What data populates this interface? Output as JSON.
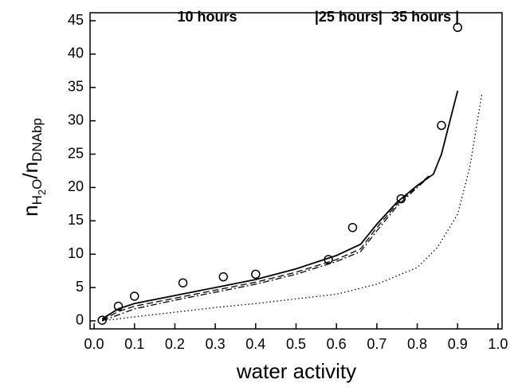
{
  "chart_data": {
    "type": "line",
    "xlabel": "water activity",
    "ylabel": [
      "n",
      "H",
      "2",
      "O",
      "/n",
      "DNAbp"
    ],
    "top_labels": [
      {
        "value": 0.28,
        "label": "10 hours"
      },
      {
        "value": 0.63,
        "label": "|25 hours|"
      },
      {
        "value": 0.82,
        "label": "35 hours |"
      }
    ],
    "xlim": [
      -0.01,
      1.01
    ],
    "ylim": [
      -1.2,
      46.2
    ],
    "xticks": [
      {
        "value": 0,
        "label": "0.0"
      },
      0.1,
      0.2,
      0.3,
      0.4,
      0.5,
      0.6,
      0.7,
      0.8,
      0.9,
      {
        "value": 1,
        "label": "1.0"
      }
    ],
    "yticks": [
      0,
      5,
      10,
      15,
      20,
      25,
      30,
      35,
      40,
      45
    ],
    "series": [
      {
        "style": "circles",
        "color": "#000000",
        "x": [
          0.02,
          0.06,
          0.1,
          0.22,
          0.32,
          0.4,
          0.58,
          0.64,
          0.76,
          0.86,
          0.9
        ],
        "values": [
          0.1,
          2.2,
          3.7,
          5.7,
          6.6,
          7.0,
          9.2,
          14.0,
          18.3,
          29.3,
          44.0
        ]
      },
      {
        "style": "solid",
        "color": "#000000",
        "x": [
          0.02,
          0.06,
          0.1,
          0.2,
          0.3,
          0.4,
          0.5,
          0.6,
          0.66,
          0.7,
          0.75,
          0.8,
          0.84,
          0.86,
          0.9
        ],
        "values": [
          0.3,
          1.8,
          2.6,
          3.8,
          5.0,
          6.2,
          7.8,
          9.8,
          11.5,
          14.5,
          17.8,
          20.3,
          22.0,
          25.0,
          34.5
        ]
      },
      {
        "style": "dashed",
        "color": "#000000",
        "x": [
          0.02,
          0.06,
          0.1,
          0.2,
          0.3,
          0.4,
          0.5,
          0.6,
          0.66,
          0.7,
          0.75,
          0.8,
          0.83
        ],
        "values": [
          0.1,
          1.4,
          2.2,
          3.4,
          4.6,
          5.8,
          7.3,
          9.2,
          10.8,
          14.0,
          17.5,
          20.2,
          21.8
        ]
      },
      {
        "style": "dashdot",
        "color": "#000000",
        "x": [
          0.02,
          0.06,
          0.1,
          0.2,
          0.3,
          0.4,
          0.5,
          0.6,
          0.66,
          0.7,
          0.75,
          0.8,
          0.83
        ],
        "values": [
          0.0,
          0.9,
          1.8,
          3.1,
          4.3,
          5.5,
          7.0,
          8.9,
          10.4,
          13.5,
          17.2,
          20.0,
          21.6
        ]
      },
      {
        "style": "dotted",
        "color": "#000000",
        "x": [
          0.02,
          0.1,
          0.2,
          0.3,
          0.4,
          0.5,
          0.6,
          0.7,
          0.8,
          0.85,
          0.9,
          0.93,
          0.96
        ],
        "values": [
          0.0,
          0.6,
          1.3,
          2.0,
          2.6,
          3.3,
          4.0,
          5.5,
          8.0,
          11.0,
          16.0,
          23.0,
          34.0
        ]
      }
    ]
  }
}
